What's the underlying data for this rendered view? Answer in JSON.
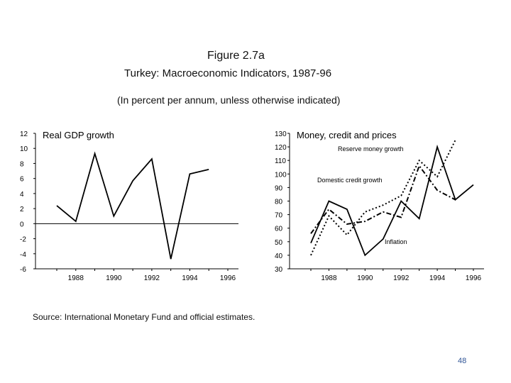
{
  "figure": {
    "title": "Figure 2.7a",
    "subtitle": "Turkey: Macroeconomic Indicators, 1987-96",
    "note": "(In percent per annum, unless otherwise indicated)"
  },
  "source": "Source: International Monetary Fund and official estimates.",
  "page_number": "48",
  "chart_data": [
    {
      "type": "line",
      "title": "Real GDP growth",
      "x": [
        1987,
        1988,
        1989,
        1990,
        1991,
        1992,
        1993,
        1994,
        1995,
        1996
      ],
      "xticks": [
        "1988",
        "1990",
        "1992",
        "1994",
        "1996"
      ],
      "ylim": [
        -6,
        12
      ],
      "yticks": [
        "12",
        "10",
        "8",
        "6",
        "4",
        "2",
        "0",
        "-2",
        "-4",
        "-6"
      ],
      "series": [
        {
          "name": "Real GDP growth",
          "style": "solid",
          "values": [
            2.4,
            0.3,
            9.3,
            1.0,
            5.7,
            8.6,
            -4.7,
            6.6,
            7.2,
            null
          ]
        }
      ]
    },
    {
      "type": "line",
      "title": "Money, credit and prices",
      "x": [
        1987,
        1988,
        1989,
        1990,
        1991,
        1992,
        1993,
        1994,
        1995,
        1996
      ],
      "xticks": [
        "1988",
        "1990",
        "1992",
        "1994",
        "1996"
      ],
      "ylim": [
        30,
        130
      ],
      "yticks": [
        "130",
        "120",
        "110",
        "100",
        "90",
        "80",
        "70",
        "60",
        "50",
        "40",
        "30"
      ],
      "series": [
        {
          "name": "Reserve money growth",
          "style": "dotted",
          "values": [
            40,
            69,
            55,
            72,
            77,
            84,
            110,
            98,
            125,
            null
          ]
        },
        {
          "name": "Domestic credit growth",
          "style": "dashdot",
          "values": [
            56,
            74,
            63,
            65,
            72,
            68,
            106,
            88,
            81,
            null
          ]
        },
        {
          "name": "Inflation",
          "style": "solid",
          "values": [
            49,
            80,
            74,
            40,
            52,
            80,
            67,
            120,
            81,
            92
          ]
        }
      ]
    }
  ]
}
